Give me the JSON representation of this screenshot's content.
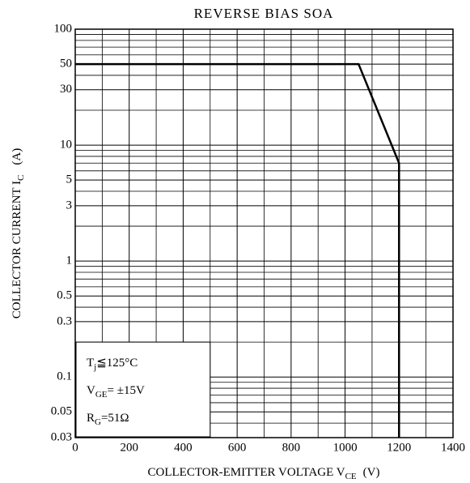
{
  "chart_data": {
    "type": "line",
    "title": "REVERSE BIAS SOA",
    "x_label": {
      "main": "COLLECTOR-EMITTER VOLTAGE  V",
      "sub": "CE",
      "unit": "(V)"
    },
    "y_label": {
      "main": "COLLECTOR CURRENT  I",
      "sub": "C",
      "unit": "(A)"
    },
    "x": [
      0,
      1050,
      1200,
      1200
    ],
    "series": [
      {
        "color": "#000000",
        "values": [
          50,
          50,
          7,
          0.03
        ]
      }
    ],
    "xlim": [
      0,
      1400
    ],
    "xticks": [
      0,
      200,
      400,
      600,
      800,
      1000,
      1200,
      1400
    ],
    "xminor": [
      100,
      300,
      500,
      700,
      900,
      1100,
      1300
    ],
    "ylim": [
      0.03,
      100
    ],
    "ylog": true,
    "yticks": [
      100,
      50,
      30,
      10,
      5,
      3,
      1,
      0.5,
      0.3,
      0.1,
      0.05,
      0.03
    ],
    "yminor": [
      0.04,
      0.06,
      0.07,
      0.08,
      0.09,
      0.2,
      0.4,
      0.6,
      0.7,
      0.8,
      0.9,
      2,
      4,
      6,
      7,
      8,
      9,
      20,
      40,
      60,
      70,
      80,
      90
    ],
    "grid": true,
    "annotations": [
      {
        "main": "T",
        "sub": "j",
        "rest": "≦125°C"
      },
      {
        "main": "V",
        "sub": "GE",
        "rest": "= ±15V"
      },
      {
        "main": "R",
        "sub": "G",
        "rest": "=51Ω"
      }
    ],
    "annotation_box_x": 500,
    "annotation_box_y": 0.2
  }
}
